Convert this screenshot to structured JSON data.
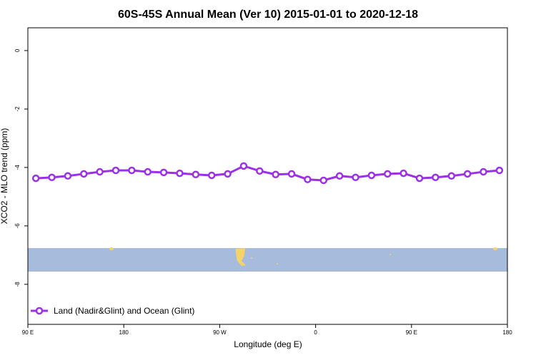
{
  "chart_data": {
    "type": "line",
    "title": "60S-45S Annual Mean (Ver 10)   2015-01-01 to 2020-12-18",
    "x_label": "Longitude (deg E)",
    "y_label": "XCO2 - MLO trend (ppm)",
    "x": [
      97.5,
      112.5,
      127.5,
      142.5,
      157.5,
      172.5,
      187.5,
      202.5,
      217.5,
      232.5,
      247.5,
      262.5,
      277.5,
      292.5,
      307.5,
      322.5,
      337.5,
      352.5,
      367.5,
      382.5,
      397.5,
      412.5,
      427.5,
      442.5,
      457.5,
      472.5,
      487.5,
      502.5,
      517.5,
      532.5
    ],
    "series": [
      {
        "name": "Land (Nadir&Glint) and Ocean (Glint)",
        "color": "#9b30e8",
        "values": [
          -4.37,
          -4.34,
          -4.29,
          -4.22,
          -4.15,
          -4.1,
          -4.1,
          -4.15,
          -4.17,
          -4.2,
          -4.24,
          -4.27,
          -4.22,
          -3.95,
          -4.12,
          -4.24,
          -4.22,
          -4.41,
          -4.44,
          -4.29,
          -4.34,
          -4.27,
          -4.22,
          -4.2,
          -4.37,
          -4.34,
          -4.29,
          -4.22,
          -4.15,
          -4.1
        ]
      }
    ],
    "xlim": [
      90,
      540
    ],
    "xticks": [
      {
        "value": 90,
        "label": "90 E"
      },
      180,
      {
        "value": 270,
        "label": "90 W"
      },
      {
        "value": 360,
        "label": "0"
      },
      {
        "value": 450,
        "label": "90 E"
      },
      {
        "value": 540,
        "label": "180"
      }
    ],
    "ylim": [
      -9.37,
      0.78
    ],
    "yticks": [
      0,
      -2,
      -4,
      -6,
      -8
    ],
    "legend": "bottomleft"
  }
}
